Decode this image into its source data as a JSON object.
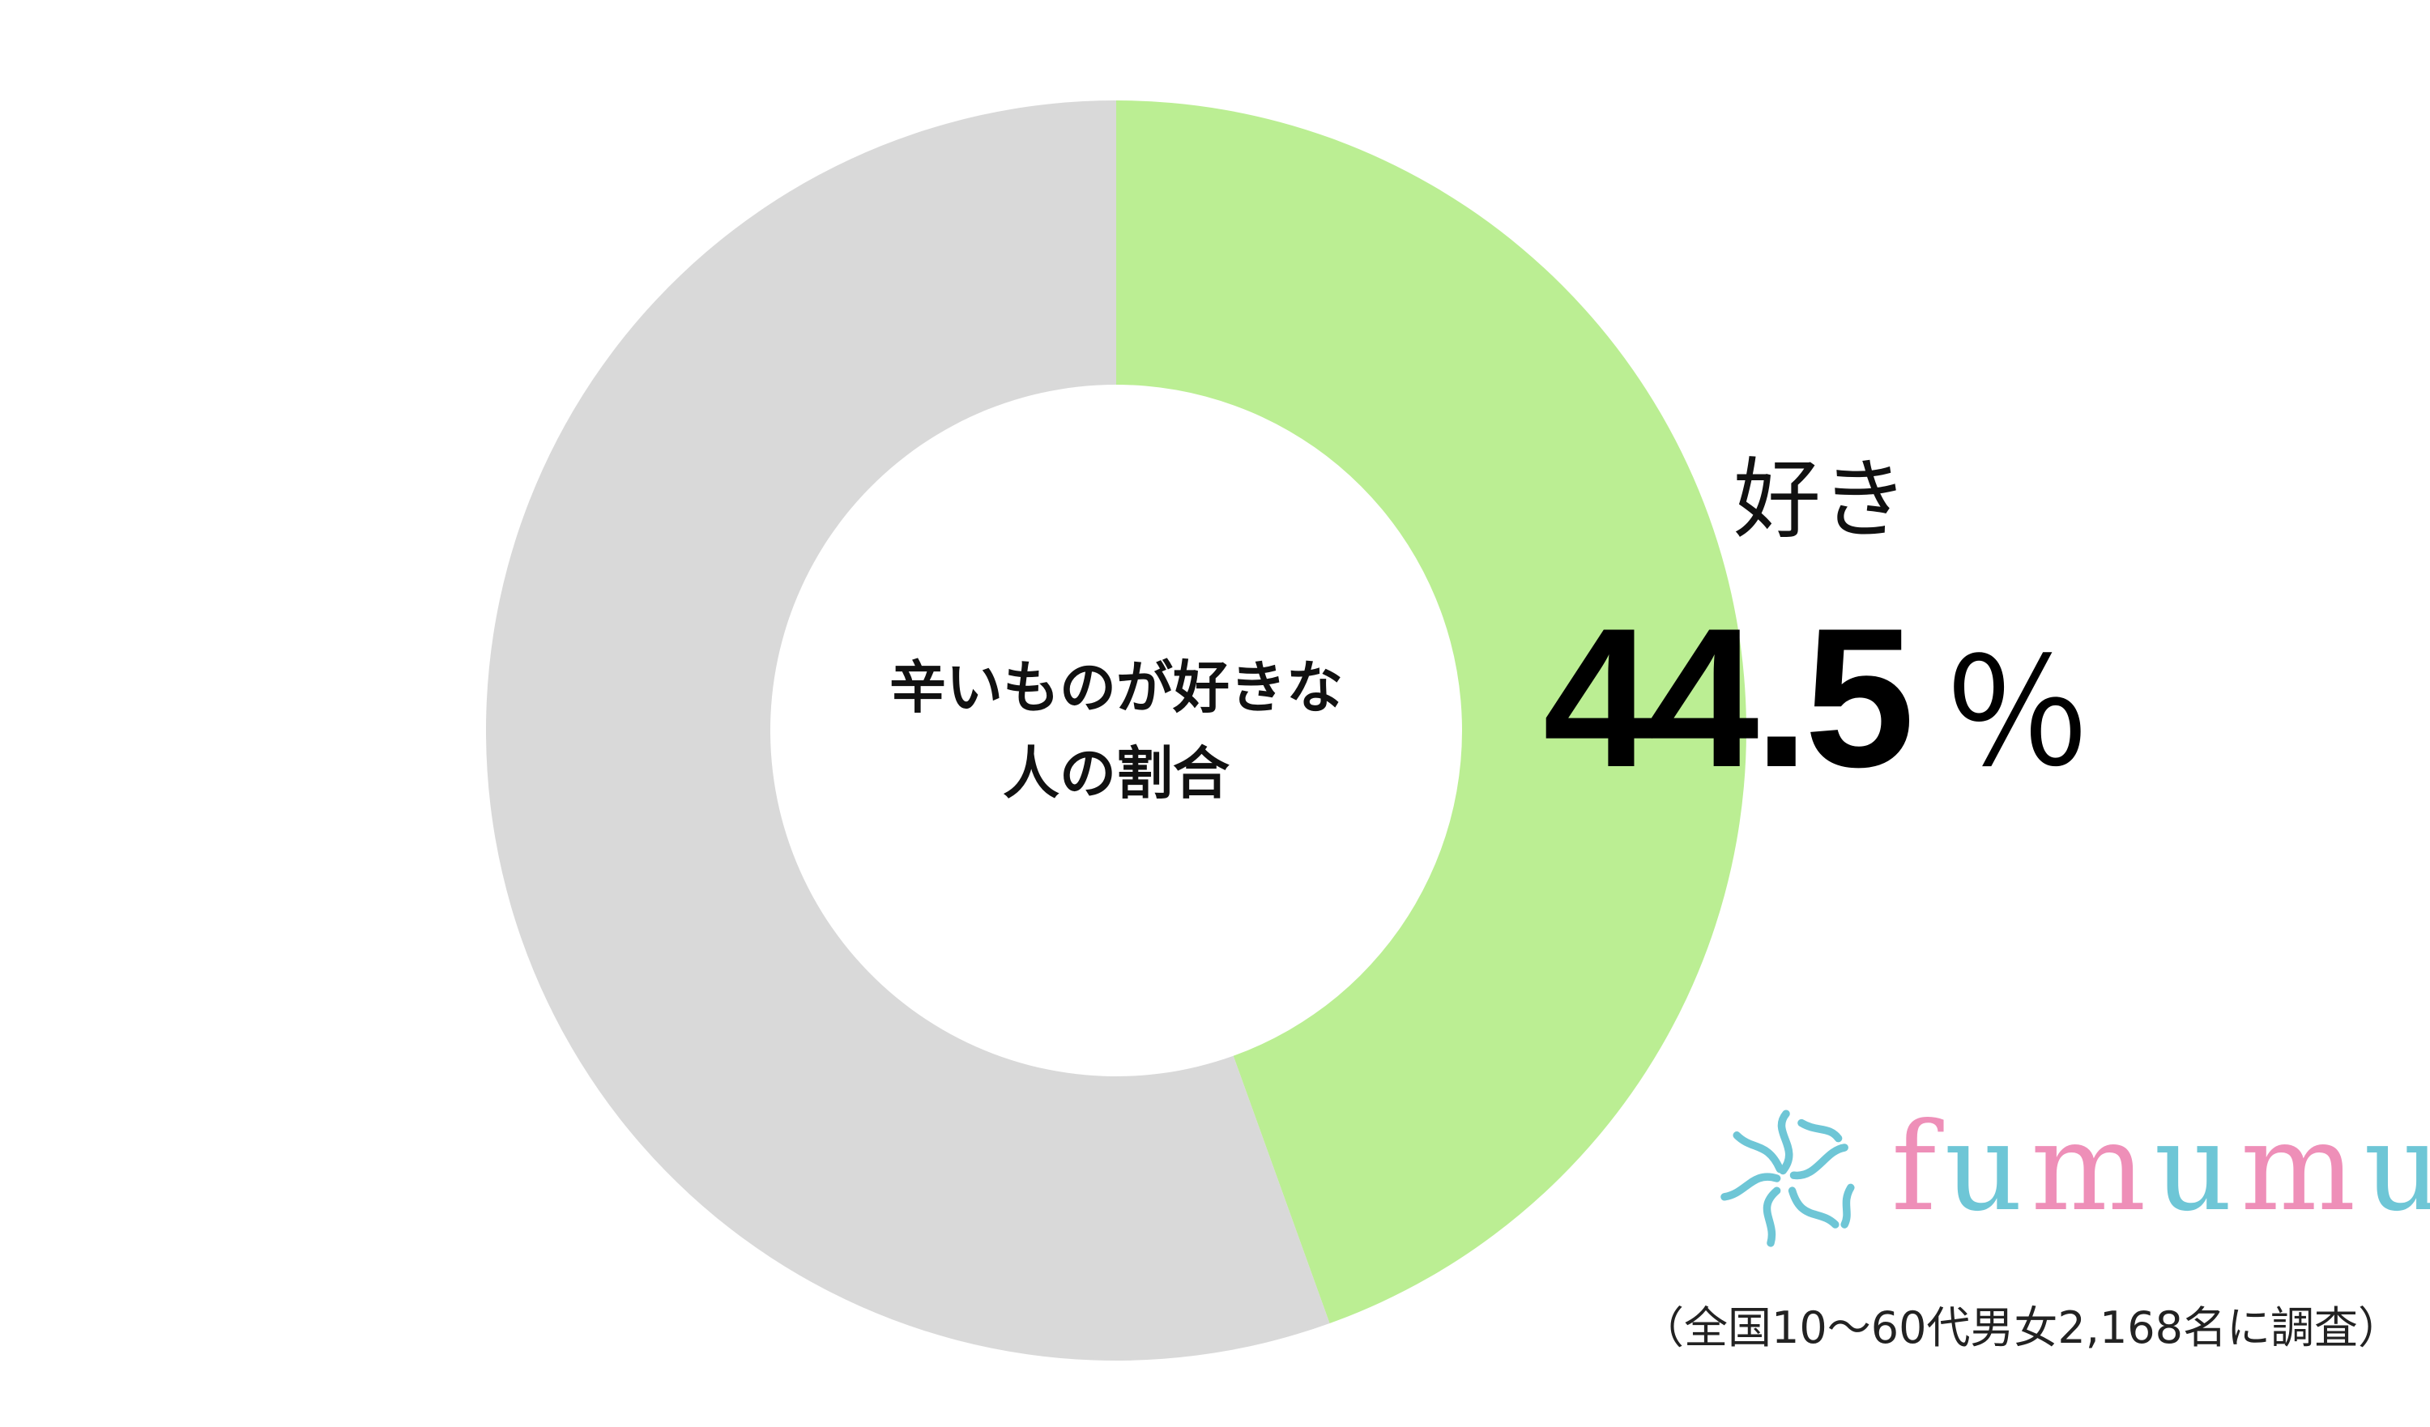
{
  "chart_data": {
    "type": "pie",
    "variant": "donut",
    "center_label": [
      "辛いものが好きな",
      "人の割合"
    ],
    "slices": [
      {
        "label": "好き",
        "value": 44.5,
        "color": "#bbee93",
        "labelled": true
      },
      {
        "value": 55.5,
        "color": "#d9d9d9",
        "labelled": false
      }
    ],
    "start": "12 o'clock, clockwise",
    "value_unit": "％",
    "value_text": "44.5"
  },
  "brand": {
    "name": "fumumu",
    "colors": {
      "pink": "#ee8fb8",
      "teal": "#6ec6d6"
    }
  },
  "note": "（全国10～60代男女2,168名に調査）"
}
